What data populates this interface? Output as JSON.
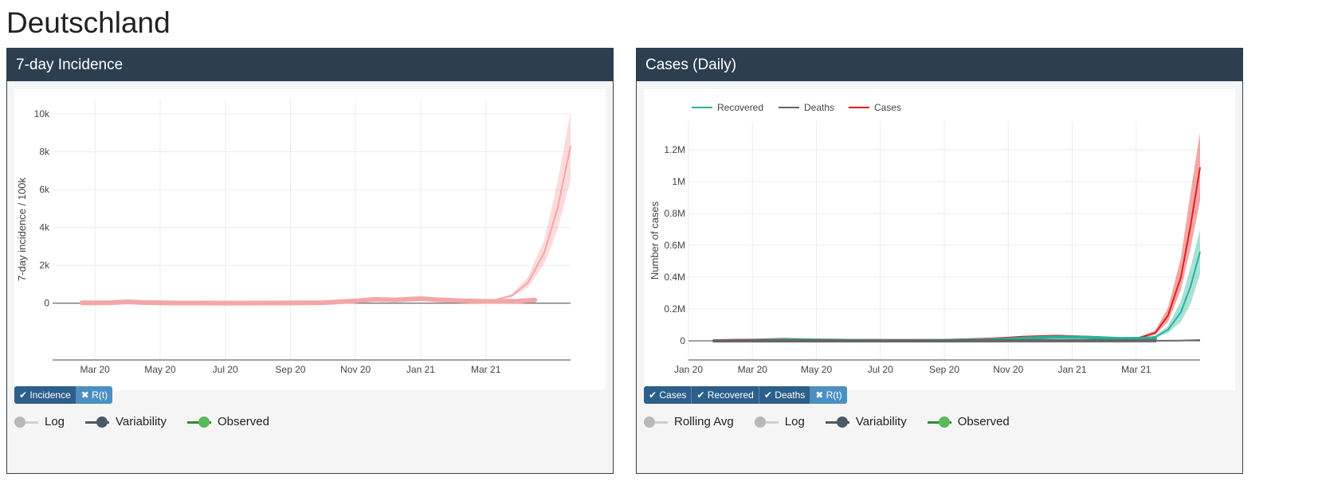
{
  "page": {
    "title": "Deutschland"
  },
  "panels": [
    {
      "title": "7-day Incidence",
      "buttons": [
        {
          "label": "Incidence",
          "on": true
        },
        {
          "label": "R(t)",
          "on": false
        }
      ],
      "toggles": [
        {
          "label": "Log",
          "state": "off"
        },
        {
          "label": "Variability",
          "state": "dark"
        },
        {
          "label": "Observed",
          "state": "on"
        }
      ]
    },
    {
      "title": "Cases (Daily)",
      "buttons": [
        {
          "label": "Cases",
          "on": true
        },
        {
          "label": "Recovered",
          "on": true
        },
        {
          "label": "Deaths",
          "on": true
        },
        {
          "label": "R(t)",
          "on": false
        }
      ],
      "toggles": [
        {
          "label": "Rolling Avg",
          "state": "off"
        },
        {
          "label": "Log",
          "state": "off"
        },
        {
          "label": "Variability",
          "state": "dark"
        },
        {
          "label": "Observed",
          "state": "on"
        }
      ]
    }
  ],
  "chart_data": [
    {
      "type": "line",
      "title": "",
      "xlabel": "",
      "ylabel": "7-day incidence / 100k",
      "x_ticks": [
        "Mar 20",
        "May 20",
        "Jul 20",
        "Sep 20",
        "Nov 20",
        "Jan 21",
        "Mar 21"
      ],
      "x_tick_months": [
        2,
        4,
        6,
        8,
        10,
        12,
        14
      ],
      "y_ticks": [
        "0",
        "2k",
        "4k",
        "6k",
        "8k",
        "10k"
      ],
      "y_tick_values": [
        0,
        2000,
        4000,
        6000,
        8000,
        10000
      ],
      "ylim": [
        -3000,
        10800
      ],
      "xlim_months": [
        0.7,
        16.6
      ],
      "grid": true,
      "legend": "none",
      "series": [
        {
          "color": "#f4a6a6",
          "observed": [
            [
              1.6,
              20
            ],
            [
              2.4,
              20
            ],
            [
              3.0,
              70
            ],
            [
              3.5,
              35
            ],
            [
              4.5,
              10
            ],
            [
              6,
              5
            ],
            [
              7.5,
              10
            ],
            [
              9,
              25
            ],
            [
              10,
              120
            ],
            [
              10.6,
              200
            ],
            [
              11.2,
              170
            ],
            [
              12,
              240
            ],
            [
              12.5,
              180
            ],
            [
              13.2,
              130
            ],
            [
              14,
              90
            ],
            [
              15,
              110
            ],
            [
              15.5,
              160
            ]
          ],
          "projection_mid": [
            [
              13.5,
              90
            ],
            [
              14.2,
              140
            ],
            [
              14.8,
              400
            ],
            [
              15.3,
              1100
            ],
            [
              15.8,
              2700
            ],
            [
              16.2,
              5000
            ],
            [
              16.6,
              8300
            ]
          ],
          "projection_upper": [
            [
              13.5,
              90
            ],
            [
              14.2,
              150
            ],
            [
              14.8,
              480
            ],
            [
              15.3,
              1400
            ],
            [
              15.8,
              3400
            ],
            [
              16.2,
              6400
            ],
            [
              16.6,
              10100
            ]
          ],
          "projection_lower": [
            [
              13.5,
              90
            ],
            [
              14.2,
              130
            ],
            [
              14.8,
              330
            ],
            [
              15.3,
              850
            ],
            [
              15.8,
              2100
            ],
            [
              16.2,
              3900
            ],
            [
              16.6,
              6500
            ]
          ]
        }
      ]
    },
    {
      "type": "line",
      "title": "",
      "xlabel": "",
      "ylabel": "Number of cases",
      "x_ticks": [
        "Jan 20",
        "Mar 20",
        "May 20",
        "Jul 20",
        "Sep 20",
        "Nov 20",
        "Jan 21",
        "Mar 21"
      ],
      "x_tick_months": [
        0,
        2,
        4,
        6,
        8,
        10,
        12,
        14
      ],
      "y_ticks": [
        "0",
        "0.2M",
        "0.4M",
        "0.6M",
        "0.8M",
        "1M",
        "1.2M"
      ],
      "y_tick_values": [
        0,
        200000,
        400000,
        600000,
        800000,
        1000000,
        1200000
      ],
      "ylim": [
        -120000,
        1380000
      ],
      "xlim_months": [
        0,
        16
      ],
      "grid": true,
      "legend": "top-left",
      "legend_entries": [
        {
          "label": "Recovered",
          "color": "#26b39a"
        },
        {
          "label": "Deaths",
          "color": "#666666"
        },
        {
          "label": "Cases",
          "color": "#e02020"
        }
      ],
      "series": [
        {
          "name": "Cases",
          "color": "#e02020",
          "observed": [
            [
              0.8,
              0
            ],
            [
              1.4,
              2000
            ],
            [
              2,
              3000
            ],
            [
              3,
              8000
            ],
            [
              4,
              4000
            ],
            [
              6,
              1000
            ],
            [
              8,
              2000
            ],
            [
              9.5,
              10000
            ],
            [
              10.5,
              22000
            ],
            [
              11.5,
              28000
            ],
            [
              12.5,
              22000
            ],
            [
              13.5,
              12000
            ],
            [
              14.6,
              18000
            ]
          ],
          "projection_mid": [
            [
              14,
              14000
            ],
            [
              14.6,
              50000
            ],
            [
              15,
              160000
            ],
            [
              15.4,
              400000
            ],
            [
              15.7,
              720000
            ],
            [
              16,
              1090000
            ]
          ],
          "projection_upper": [
            [
              14,
              16000
            ],
            [
              14.6,
              65000
            ],
            [
              15,
              210000
            ],
            [
              15.4,
              520000
            ],
            [
              15.7,
              930000
            ],
            [
              16,
              1310000
            ]
          ],
          "projection_lower": [
            [
              14,
              12000
            ],
            [
              14.6,
              38000
            ],
            [
              15,
              120000
            ],
            [
              15.4,
              320000
            ],
            [
              15.7,
              580000
            ],
            [
              16,
              880000
            ]
          ]
        },
        {
          "name": "Recovered",
          "color": "#26b39a",
          "observed": [
            [
              1.4,
              0
            ],
            [
              2,
              1000
            ],
            [
              3,
              6000
            ],
            [
              4,
              4000
            ],
            [
              6,
              1000
            ],
            [
              8,
              2000
            ],
            [
              9.5,
              6000
            ],
            [
              10.5,
              16000
            ],
            [
              11.5,
              24000
            ],
            [
              12.5,
              22000
            ],
            [
              13.5,
              14000
            ],
            [
              14.6,
              16000
            ]
          ],
          "projection_mid": [
            [
              14,
              13000
            ],
            [
              14.6,
              25000
            ],
            [
              15,
              70000
            ],
            [
              15.4,
              180000
            ],
            [
              15.7,
              340000
            ],
            [
              16,
              560000
            ]
          ],
          "projection_upper": [
            [
              14,
              14000
            ],
            [
              14.6,
              32000
            ],
            [
              15,
              95000
            ],
            [
              15.4,
              250000
            ],
            [
              15.7,
              460000
            ],
            [
              16,
              700000
            ]
          ],
          "projection_lower": [
            [
              14,
              12000
            ],
            [
              14.6,
              18000
            ],
            [
              15,
              50000
            ],
            [
              15.4,
              120000
            ],
            [
              15.7,
              230000
            ],
            [
              16,
              420000
            ]
          ]
        },
        {
          "name": "Deaths",
          "color": "#666666",
          "observed": [
            [
              0.8,
              0
            ],
            [
              4,
              200
            ],
            [
              8,
              100
            ],
            [
              11,
              500
            ],
            [
              12.5,
              800
            ],
            [
              14.6,
              400
            ]
          ],
          "projection_mid": [
            [
              14.6,
              400
            ],
            [
              15.3,
              1500
            ],
            [
              16,
              5000
            ]
          ],
          "projection_upper": [
            [
              14.6,
              500
            ],
            [
              15.3,
              2500
            ],
            [
              16,
              9000
            ]
          ],
          "projection_lower": [
            [
              14.6,
              300
            ],
            [
              15.3,
              800
            ],
            [
              16,
              2500
            ]
          ]
        }
      ]
    }
  ],
  "colors": {
    "header": "#2c3e50",
    "button_on": "#2c5f8a",
    "button_off": "#4a90c2",
    "toggle_on": "#5cb85c",
    "toggle_dark": "#4a5a66",
    "toggle_off": "#b8b8b8"
  },
  "icons": {
    "check": "check-icon",
    "cross": "times-icon"
  }
}
